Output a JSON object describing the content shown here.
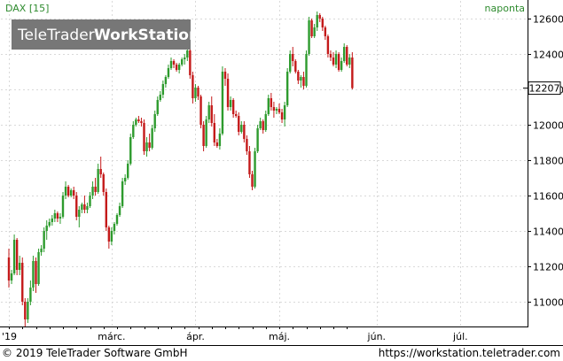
{
  "chart_data": {
    "type": "candlestick",
    "symbol_label": "DAX [15]",
    "period_label": "naponta",
    "current_value_label": "12207",
    "watermark": {
      "part1": "TeleTrader",
      "part2": "WorkStation"
    },
    "footer": {
      "left": "© 2019 TeleTrader Software GmbH",
      "right": "https://workstation.teletrader.com"
    },
    "ylim": [
      10860,
      12700
    ],
    "y_ticks": [
      11000,
      11200,
      11400,
      11600,
      11800,
      12000,
      12200,
      12400,
      12600
    ],
    "y_tick_labels": [
      "11000",
      "11200",
      "11400",
      "11600",
      "11800",
      "12000",
      "12200",
      "12400",
      "12600"
    ],
    "x_labels": [
      {
        "label": "'19",
        "index": 0
      },
      {
        "label": "márc.",
        "index": 38
      },
      {
        "label": "ápr.",
        "index": 69
      },
      {
        "label": "máj.",
        "index": 100
      },
      {
        "label": "jún.",
        "index": 136
      },
      {
        "label": "júl.",
        "index": 167
      }
    ],
    "grid": true,
    "colors": {
      "up": "#2e9b2e",
      "down": "#c41a1a",
      "grid": "#d9d9d9",
      "axis": "#000000",
      "label": "#2e8b2e"
    },
    "candles": [
      [
        11250,
        11300,
        11080,
        11120
      ],
      [
        11120,
        11180,
        11100,
        11160
      ],
      [
        11160,
        11380,
        11150,
        11350
      ],
      [
        11350,
        11360,
        11150,
        11180
      ],
      [
        11180,
        11260,
        11150,
        11220
      ],
      [
        11220,
        11250,
        10980,
        11000
      ],
      [
        11000,
        11020,
        10860,
        10900
      ],
      [
        10900,
        11020,
        10880,
        11000
      ],
      [
        11000,
        11120,
        10980,
        11080
      ],
      [
        11080,
        11260,
        11060,
        11230
      ],
      [
        11230,
        11250,
        11050,
        11100
      ],
      [
        11100,
        11300,
        11090,
        11280
      ],
      [
        11280,
        11320,
        11260,
        11300
      ],
      [
        11300,
        11420,
        11280,
        11400
      ],
      [
        11400,
        11460,
        11350,
        11430
      ],
      [
        11430,
        11470,
        11420,
        11450
      ],
      [
        11450,
        11490,
        11430,
        11470
      ],
      [
        11470,
        11520,
        11450,
        11500
      ],
      [
        11500,
        11510,
        11450,
        11470
      ],
      [
        11470,
        11500,
        11440,
        11480
      ],
      [
        11480,
        11620,
        11470,
        11600
      ],
      [
        11600,
        11680,
        11580,
        11650
      ],
      [
        11650,
        11660,
        11590,
        11600
      ],
      [
        11600,
        11640,
        11590,
        11630
      ],
      [
        11630,
        11650,
        11580,
        11600
      ],
      [
        11600,
        11620,
        11460,
        11480
      ],
      [
        11480,
        11540,
        11420,
        11520
      ],
      [
        11520,
        11560,
        11500,
        11550
      ],
      [
        11550,
        11600,
        11500,
        11520
      ],
      [
        11520,
        11560,
        11500,
        11540
      ],
      [
        11540,
        11620,
        11530,
        11600
      ],
      [
        11600,
        11680,
        11580,
        11650
      ],
      [
        11650,
        11700,
        11600,
        11620
      ],
      [
        11620,
        11780,
        11610,
        11750
      ],
      [
        11750,
        11820,
        11700,
        11720
      ],
      [
        11720,
        11730,
        11600,
        11620
      ],
      [
        11620,
        11640,
        11400,
        11420
      ],
      [
        11420,
        11430,
        11300,
        11340
      ],
      [
        11340,
        11420,
        11320,
        11400
      ],
      [
        11400,
        11450,
        11380,
        11440
      ],
      [
        11440,
        11500,
        11430,
        11490
      ],
      [
        11490,
        11560,
        11480,
        11540
      ],
      [
        11540,
        11700,
        11530,
        11680
      ],
      [
        11680,
        11720,
        11660,
        11700
      ],
      [
        11700,
        11800,
        11690,
        11780
      ],
      [
        11780,
        11950,
        11770,
        11930
      ],
      [
        11930,
        12020,
        11920,
        12000
      ],
      [
        12000,
        12040,
        11990,
        12030
      ],
      [
        12030,
        12050,
        12010,
        12020
      ],
      [
        12020,
        12040,
        11990,
        12010
      ],
      [
        12010,
        12030,
        11830,
        11850
      ],
      [
        11850,
        11930,
        11820,
        11900
      ],
      [
        11900,
        11950,
        11850,
        11870
      ],
      [
        11870,
        12000,
        11860,
        11980
      ],
      [
        11980,
        12080,
        11960,
        12060
      ],
      [
        12060,
        12160,
        12050,
        12140
      ],
      [
        12140,
        12190,
        12130,
        12170
      ],
      [
        12170,
        12250,
        12150,
        12230
      ],
      [
        12230,
        12280,
        12210,
        12270
      ],
      [
        12270,
        12340,
        12260,
        12320
      ],
      [
        12320,
        12380,
        12310,
        12360
      ],
      [
        12360,
        12370,
        12320,
        12340
      ],
      [
        12340,
        12350,
        12300,
        12310
      ],
      [
        12310,
        12350,
        12290,
        12340
      ],
      [
        12340,
        12380,
        12330,
        12370
      ],
      [
        12370,
        12400,
        12340,
        12380
      ],
      [
        12380,
        12430,
        12360,
        12420
      ],
      [
        12420,
        12440,
        12260,
        12280
      ],
      [
        12280,
        12300,
        12120,
        12150
      ],
      [
        12150,
        12230,
        12130,
        12210
      ],
      [
        12210,
        12220,
        12140,
        12160
      ],
      [
        12160,
        12170,
        11980,
        12000
      ],
      [
        12000,
        12020,
        11850,
        11880
      ],
      [
        11880,
        12050,
        11870,
        12030
      ],
      [
        12030,
        12130,
        12010,
        12110
      ],
      [
        12110,
        12160,
        11990,
        12010
      ],
      [
        12010,
        12060,
        11880,
        11900
      ],
      [
        11900,
        11920,
        11870,
        11880
      ],
      [
        11880,
        11980,
        11860,
        11950
      ],
      [
        11950,
        12330,
        11940,
        12300
      ],
      [
        12300,
        12320,
        12220,
        12260
      ],
      [
        12260,
        12290,
        12080,
        12100
      ],
      [
        12100,
        12160,
        12080,
        12140
      ],
      [
        12140,
        12150,
        12040,
        12060
      ],
      [
        12060,
        12080,
        12040,
        12050
      ],
      [
        12050,
        12070,
        11940,
        11960
      ],
      [
        11960,
        12020,
        11950,
        12000
      ],
      [
        12000,
        12020,
        11900,
        11920
      ],
      [
        11920,
        11940,
        11830,
        11850
      ],
      [
        11850,
        11880,
        11700,
        11720
      ],
      [
        11720,
        11740,
        11630,
        11650
      ],
      [
        11650,
        11870,
        11640,
        11850
      ],
      [
        11850,
        12000,
        11840,
        11980
      ],
      [
        11980,
        12040,
        11970,
        12020
      ],
      [
        12020,
        12030,
        11950,
        11970
      ],
      [
        11970,
        12080,
        11960,
        12060
      ],
      [
        12060,
        12170,
        12050,
        12150
      ],
      [
        12150,
        12180,
        12080,
        12100
      ],
      [
        12100,
        12130,
        12040,
        12080
      ],
      [
        12080,
        12100,
        12060,
        12090
      ],
      [
        12090,
        12120,
        12060,
        12070
      ],
      [
        12070,
        12090,
        12010,
        12030
      ],
      [
        12030,
        12130,
        11990,
        12110
      ],
      [
        12110,
        12320,
        12100,
        12300
      ],
      [
        12300,
        12420,
        12290,
        12400
      ],
      [
        12400,
        12440,
        12330,
        12360
      ],
      [
        12360,
        12370,
        12290,
        12300
      ],
      [
        12300,
        12310,
        12230,
        12250
      ],
      [
        12250,
        12280,
        12210,
        12270
      ],
      [
        12270,
        12300,
        12200,
        12220
      ],
      [
        12220,
        12420,
        12210,
        12400
      ],
      [
        12400,
        12610,
        12390,
        12590
      ],
      [
        12590,
        12600,
        12490,
        12500
      ],
      [
        12500,
        12570,
        12490,
        12550
      ],
      [
        12550,
        12640,
        12530,
        12620
      ],
      [
        12620,
        12630,
        12580,
        12600
      ],
      [
        12600,
        12610,
        12530,
        12550
      ],
      [
        12550,
        12560,
        12480,
        12500
      ],
      [
        12500,
        12510,
        12380,
        12400
      ],
      [
        12400,
        12420,
        12360,
        12380
      ],
      [
        12380,
        12410,
        12330,
        12340
      ],
      [
        12340,
        12420,
        12320,
        12400
      ],
      [
        12400,
        12410,
        12300,
        12310
      ],
      [
        12310,
        12380,
        12300,
        12360
      ],
      [
        12360,
        12460,
        12350,
        12440
      ],
      [
        12440,
        12450,
        12330,
        12340
      ],
      [
        12340,
        12400,
        12320,
        12380
      ],
      [
        12380,
        12410,
        12200,
        12207
      ]
    ]
  }
}
